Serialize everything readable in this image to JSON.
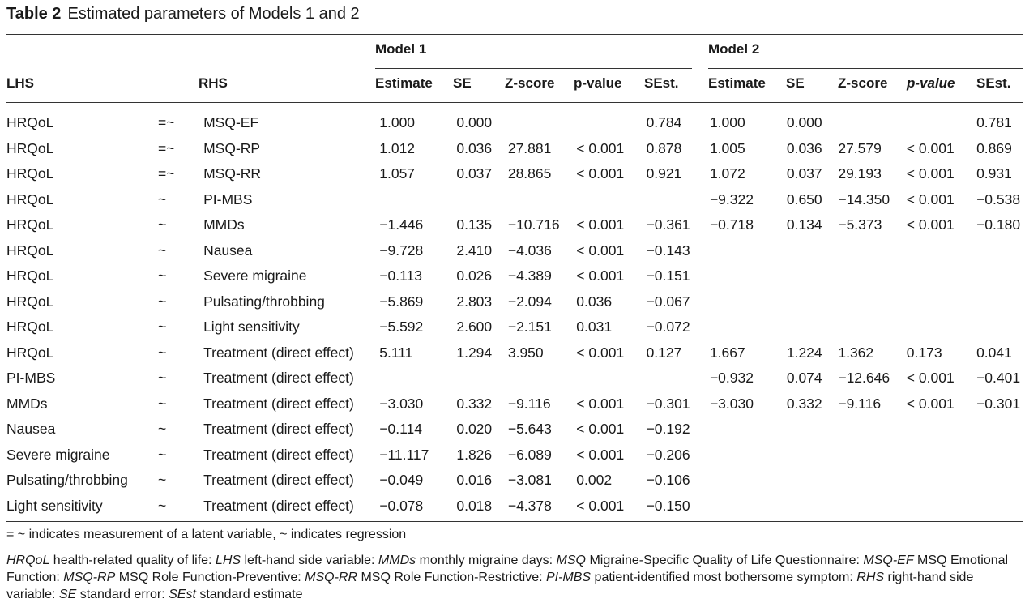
{
  "title": {
    "label": "Table 2",
    "caption": "Estimated parameters of Models 1 and 2"
  },
  "header": {
    "model1": "Model 1",
    "model2": "Model 2",
    "lhs": "LHS",
    "rhs": "RHS",
    "estimate": "Estimate",
    "se": "SE",
    "zscore": "Z-score",
    "pvalue": "p-value",
    "sest": "SEst."
  },
  "rows": [
    {
      "lhs": "HRQoL",
      "op": "=~",
      "rhs": "MSQ-EF",
      "m1": [
        "1.000",
        "0.000",
        "",
        "",
        "0.784"
      ],
      "m2": [
        "1.000",
        "0.000",
        "",
        "",
        "0.781"
      ]
    },
    {
      "lhs": "HRQoL",
      "op": "=~",
      "rhs": "MSQ-RP",
      "m1": [
        "1.012",
        "0.036",
        "27.881",
        "< 0.001",
        "0.878"
      ],
      "m2": [
        "1.005",
        "0.036",
        "27.579",
        "< 0.001",
        "0.869"
      ]
    },
    {
      "lhs": "HRQoL",
      "op": "=~",
      "rhs": "MSQ-RR",
      "m1": [
        "1.057",
        "0.037",
        "28.865",
        "< 0.001",
        "0.921"
      ],
      "m2": [
        "1.072",
        "0.037",
        "29.193",
        "< 0.001",
        "0.931"
      ]
    },
    {
      "lhs": "HRQoL",
      "op": "~",
      "rhs": "PI-MBS",
      "m1": [
        "",
        "",
        "",
        "",
        ""
      ],
      "m2": [
        "−9.322",
        "0.650",
        "−14.350",
        "< 0.001",
        "−0.538"
      ]
    },
    {
      "lhs": "HRQoL",
      "op": "~",
      "rhs": "MMDs",
      "m1": [
        "−1.446",
        "0.135",
        "−10.716",
        "< 0.001",
        "−0.361"
      ],
      "m2": [
        "−0.718",
        "0.134",
        "−5.373",
        "< 0.001",
        "−0.180"
      ]
    },
    {
      "lhs": "HRQoL",
      "op": "~",
      "rhs": "Nausea",
      "m1": [
        "−9.728",
        "2.410",
        "−4.036",
        "< 0.001",
        "−0.143"
      ],
      "m2": [
        "",
        "",
        "",
        "",
        ""
      ]
    },
    {
      "lhs": "HRQoL",
      "op": "~",
      "rhs": "Severe migraine",
      "m1": [
        "−0.113",
        "0.026",
        "−4.389",
        "< 0.001",
        "−0.151"
      ],
      "m2": [
        "",
        "",
        "",
        "",
        ""
      ]
    },
    {
      "lhs": "HRQoL",
      "op": "~",
      "rhs": "Pulsating/throbbing",
      "m1": [
        "−5.869",
        "2.803",
        "−2.094",
        "0.036",
        "−0.067"
      ],
      "m2": [
        "",
        "",
        "",
        "",
        ""
      ]
    },
    {
      "lhs": "HRQoL",
      "op": "~",
      "rhs": "Light sensitivity",
      "m1": [
        "−5.592",
        "2.600",
        "−2.151",
        "0.031",
        "−0.072"
      ],
      "m2": [
        "",
        "",
        "",
        "",
        ""
      ]
    },
    {
      "lhs": "HRQoL",
      "op": "~",
      "rhs": "Treatment (direct effect)",
      "m1": [
        "5.111",
        "1.294",
        "3.950",
        "< 0.001",
        "0.127"
      ],
      "m2": [
        "1.667",
        "1.224",
        "1.362",
        "0.173",
        "0.041"
      ]
    },
    {
      "lhs": "PI-MBS",
      "op": "~",
      "rhs": "Treatment (direct effect)",
      "m1": [
        "",
        "",
        "",
        "",
        ""
      ],
      "m2": [
        "−0.932",
        "0.074",
        "−12.646",
        "< 0.001",
        "−0.401"
      ]
    },
    {
      "lhs": "MMDs",
      "op": "~",
      "rhs": "Treatment (direct effect)",
      "m1": [
        "−3.030",
        "0.332",
        "−9.116",
        "< 0.001",
        "−0.301"
      ],
      "m2": [
        "−3.030",
        "0.332",
        "−9.116",
        "< 0.001",
        "−0.301"
      ]
    },
    {
      "lhs": "Nausea",
      "op": "~",
      "rhs": "Treatment (direct effect)",
      "m1": [
        "−0.114",
        "0.020",
        "−5.643",
        "< 0.001",
        "−0.192"
      ],
      "m2": [
        "",
        "",
        "",
        "",
        ""
      ]
    },
    {
      "lhs": "Severe migraine",
      "op": "~",
      "rhs": "Treatment (direct effect)",
      "m1": [
        "−11.117",
        "1.826",
        "−6.089",
        "< 0.001",
        "−0.206"
      ],
      "m2": [
        "",
        "",
        "",
        "",
        ""
      ]
    },
    {
      "lhs": "Pulsating/throbbing",
      "op": "~",
      "rhs": "Treatment (direct effect)",
      "m1": [
        "−0.049",
        "0.016",
        "−3.081",
        "0.002",
        "−0.106"
      ],
      "m2": [
        "",
        "",
        "",
        "",
        ""
      ]
    },
    {
      "lhs": "Light sensitivity",
      "op": "~",
      "rhs": "Treatment (direct effect)",
      "m1": [
        "−0.078",
        "0.018",
        "−4.378",
        "< 0.001",
        "−0.150"
      ],
      "m2": [
        "",
        "",
        "",
        "",
        ""
      ]
    }
  ],
  "notes": {
    "operators": "= ~ indicates measurement of a latent variable, ~ indicates regression",
    "abbreviations": [
      {
        "term": "HRQoL",
        "def": " health-related quality of life: "
      },
      {
        "term": "LHS",
        "def": " left-hand side variable: "
      },
      {
        "term": "MMDs",
        "def": " monthly migraine days: "
      },
      {
        "term": "MSQ",
        "def": " Migraine-Specific Quality of Life Questionnaire: "
      },
      {
        "term": "MSQ-EF",
        "def": " MSQ Emotional Function: "
      },
      {
        "term": "MSQ-RP",
        "def": " MSQ Role Function-Preventive: "
      },
      {
        "term": "MSQ-RR",
        "def": " MSQ Role Function-Restrictive: "
      },
      {
        "term": "PI-MBS",
        "def": " patient-identified most bothersome symptom: "
      },
      {
        "term": "RHS",
        "def": " right-hand side variable: "
      },
      {
        "term": "SE",
        "def": " standard error: "
      },
      {
        "term": "SEst",
        "def": " standard estimate"
      }
    ]
  }
}
